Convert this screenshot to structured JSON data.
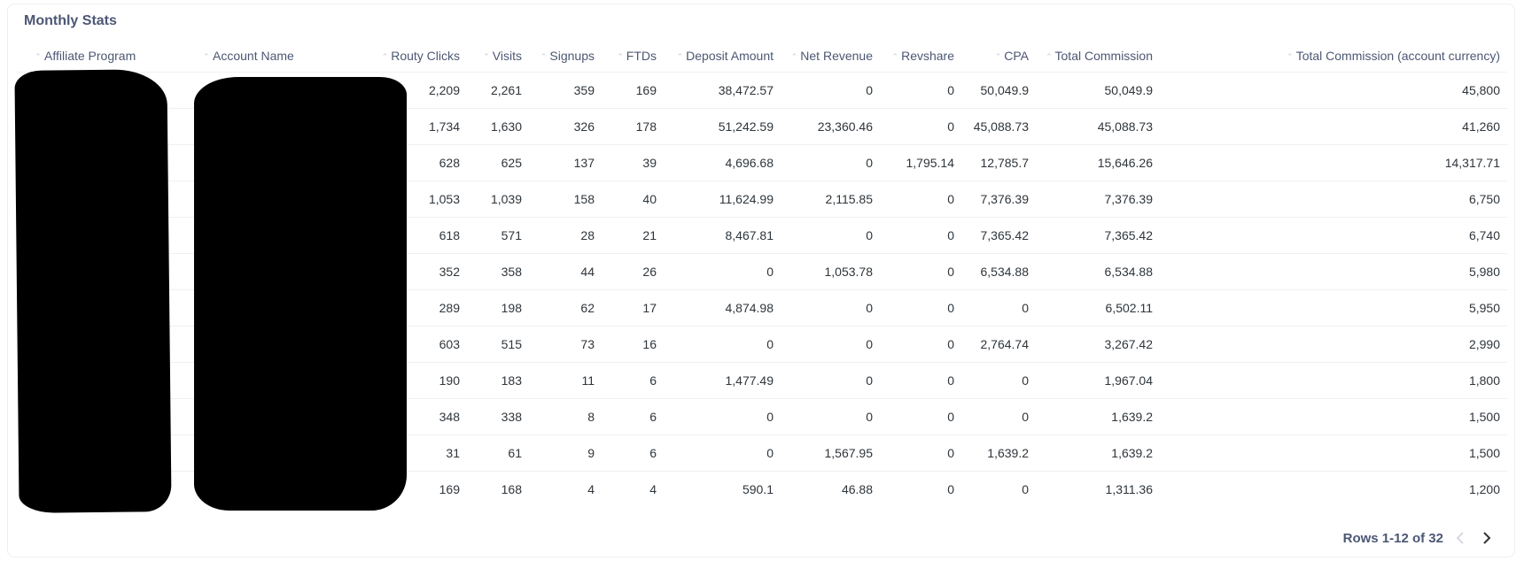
{
  "card": {
    "title": "Monthly Stats"
  },
  "table": {
    "columns": [
      "Affiliate Program",
      "Account Name",
      "Routy Clicks",
      "Visits",
      "Signups",
      "FTDs",
      "Deposit Amount",
      "Net Revenue",
      "Revshare",
      "CPA",
      "Total Commission",
      "Total Commission (account currency)"
    ],
    "rows": [
      [
        "",
        "",
        "2,209",
        "2,261",
        "359",
        "169",
        "38,472.57",
        "0",
        "0",
        "50,049.9",
        "50,049.9",
        "45,800"
      ],
      [
        "",
        "",
        "1,734",
        "1,630",
        "326",
        "178",
        "51,242.59",
        "23,360.46",
        "0",
        "45,088.73",
        "45,088.73",
        "41,260"
      ],
      [
        "",
        "",
        "628",
        "625",
        "137",
        "39",
        "4,696.68",
        "0",
        "1,795.14",
        "12,785.7",
        "15,646.26",
        "14,317.71"
      ],
      [
        "",
        "",
        "1,053",
        "1,039",
        "158",
        "40",
        "11,624.99",
        "2,115.85",
        "0",
        "7,376.39",
        "7,376.39",
        "6,750"
      ],
      [
        "",
        "",
        "618",
        "571",
        "28",
        "21",
        "8,467.81",
        "0",
        "0",
        "7,365.42",
        "7,365.42",
        "6,740"
      ],
      [
        "",
        "",
        "352",
        "358",
        "44",
        "26",
        "0",
        "1,053.78",
        "0",
        "6,534.88",
        "6,534.88",
        "5,980"
      ],
      [
        "",
        "",
        "289",
        "198",
        "62",
        "17",
        "4,874.98",
        "0",
        "0",
        "0",
        "6,502.11",
        "5,950"
      ],
      [
        "",
        "",
        "603",
        "515",
        "73",
        "16",
        "0",
        "0",
        "0",
        "2,764.74",
        "3,267.42",
        "2,990"
      ],
      [
        "",
        "",
        "190",
        "183",
        "11",
        "6",
        "1,477.49",
        "0",
        "0",
        "0",
        "1,967.04",
        "1,800"
      ],
      [
        "",
        "",
        "348",
        "338",
        "8",
        "6",
        "0",
        "0",
        "0",
        "0",
        "1,639.2",
        "1,500"
      ],
      [
        "",
        "",
        "31",
        "61",
        "9",
        "6",
        "0",
        "1,567.95",
        "0",
        "1,639.2",
        "1,639.2",
        "1,500"
      ],
      [
        "",
        "",
        "169",
        "168",
        "4",
        "4",
        "590.1",
        "46.88",
        "0",
        "0",
        "1,311.36",
        "1,200"
      ]
    ]
  },
  "pagination": {
    "label": "Rows 1-12 of 32",
    "prev_icon": "chevron-left-icon",
    "next_icon": "chevron-right-icon"
  },
  "colors": {
    "text": "#4c5773",
    "cell_text": "#2e353b",
    "link": "#509ee3",
    "redaction": "#000000"
  }
}
